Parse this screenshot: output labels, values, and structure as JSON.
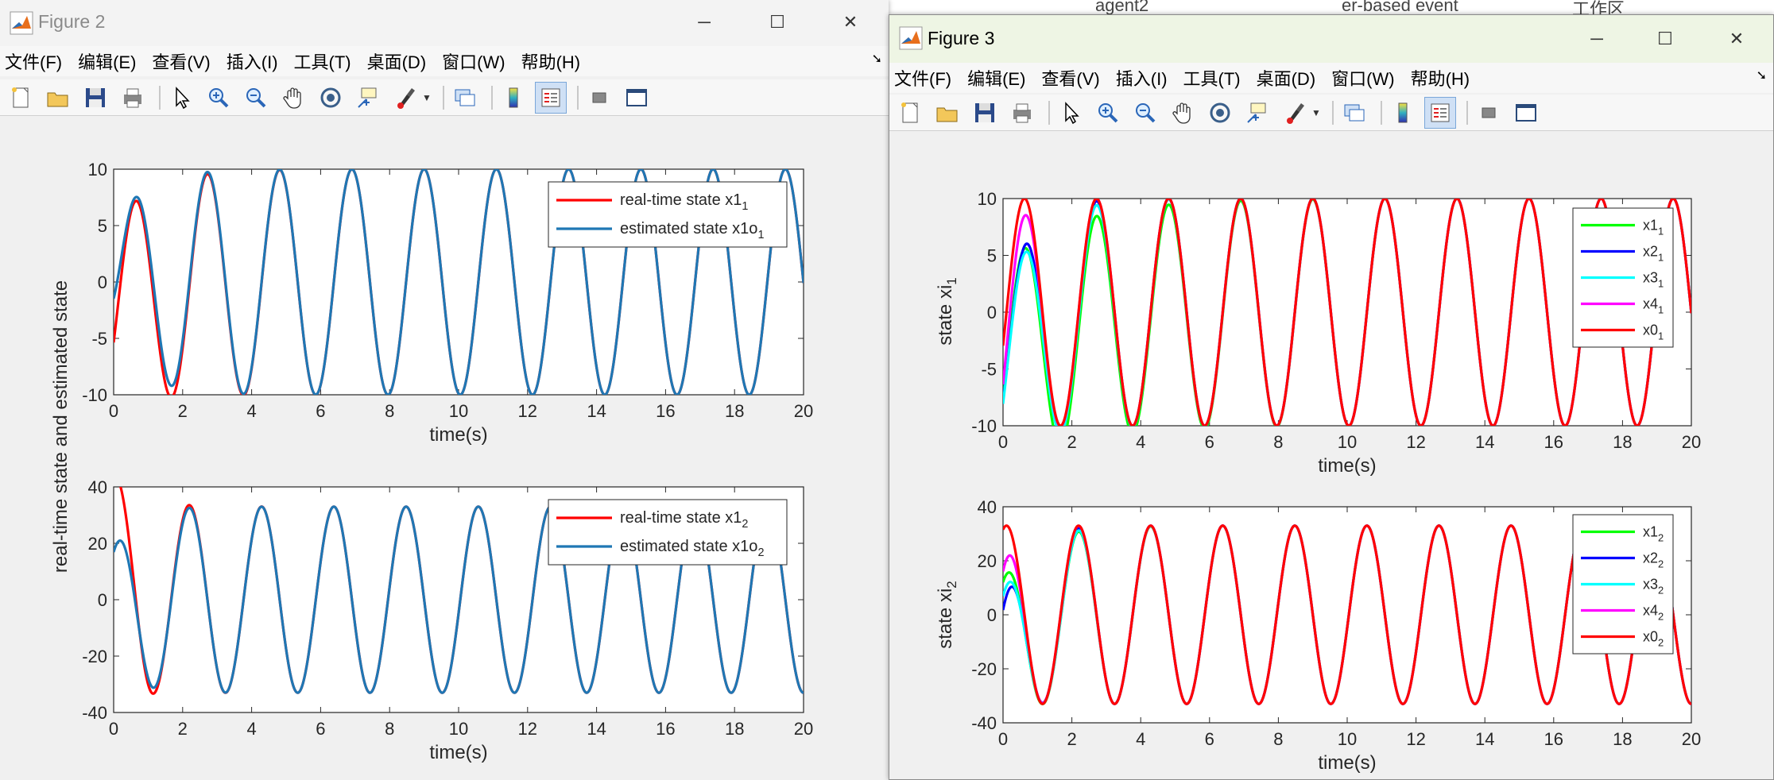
{
  "background": {
    "items": [
      "agent2",
      "er-based event",
      "工作区"
    ]
  },
  "windows": [
    {
      "id": "win2",
      "title": "Figure 2",
      "menus": [
        "文件(F)",
        "编辑(E)",
        "查看(V)",
        "插入(I)",
        "工具(T)",
        "桌面(D)",
        "窗口(W)",
        "帮助(H)"
      ],
      "toolbar_icons": [
        "new-figure-icon",
        "open-icon",
        "save-icon",
        "print-icon",
        "pointer-icon",
        "zoom-in-icon",
        "zoom-out-icon",
        "pan-icon",
        "rotate-icon",
        "data-cursor-icon",
        "brush-icon",
        "link-plot-icon",
        "colorbar-icon",
        "legend-icon",
        "hide-tools-icon",
        "dock-layout-icon"
      ]
    },
    {
      "id": "win3",
      "title": "Figure 3",
      "menus": [
        "文件(F)",
        "编辑(E)",
        "查看(V)",
        "插入(I)",
        "工具(T)",
        "桌面(D)",
        "窗口(W)",
        "帮助(H)"
      ],
      "toolbar_icons": [
        "new-figure-icon",
        "open-icon",
        "save-icon",
        "print-icon",
        "pointer-icon",
        "zoom-in-icon",
        "zoom-out-icon",
        "pan-icon",
        "rotate-icon",
        "data-cursor-icon",
        "brush-icon",
        "link-plot-icon",
        "colorbar-icon",
        "legend-icon",
        "hide-tools-icon",
        "dock-layout-icon"
      ]
    }
  ],
  "chart_data": [
    {
      "type": "line",
      "window": "Figure 2",
      "xlabel": "time(s)",
      "ylabel": "real-time state and estimated state",
      "xlim": [
        0,
        20
      ],
      "ylim": [
        -10,
        10
      ],
      "xticks": [
        0,
        2,
        4,
        6,
        8,
        10,
        12,
        14,
        16,
        18,
        20
      ],
      "yticks": [
        -10,
        -5,
        0,
        5,
        10
      ],
      "legend_position": "top-right",
      "series": [
        {
          "name": "real-time state x1",
          "sub": "1",
          "color": "#ff0000",
          "model": {
            "amp": 10,
            "w": 3.0,
            "phase": -0.3,
            "transient": [
              -3,
              0.8,
              0.9
            ]
          }
        },
        {
          "name": "estimated state x1o",
          "sub": "1",
          "color": "#1f77b4",
          "model": {
            "amp": 10,
            "w": 3.0,
            "phase": -0.3,
            "transient": [
              0,
              0.5,
              1.1
            ]
          }
        }
      ]
    },
    {
      "type": "line",
      "window": "Figure 2",
      "xlabel": "time(s)",
      "ylabel": "real-time state and estimated state",
      "xlim": [
        0,
        20
      ],
      "ylim": [
        -40,
        40
      ],
      "xticks": [
        0,
        2,
        4,
        6,
        8,
        10,
        12,
        14,
        16,
        18,
        20
      ],
      "yticks": [
        -40,
        -20,
        0,
        20,
        40
      ],
      "legend_position": "top-right",
      "series": [
        {
          "name": "real-time state x1",
          "sub": "2",
          "color": "#ff0000",
          "model": {
            "amp": 33,
            "w": 3.0,
            "phase": 1.27,
            "transient": [
              5,
              1.2,
              1.4
            ]
          }
        },
        {
          "name": "estimated state x1o",
          "sub": "2",
          "color": "#1f77b4",
          "model": {
            "amp": 33,
            "w": 3.0,
            "phase": 1.27,
            "transient": [
              -2,
              0.6,
              1.6
            ]
          }
        }
      ]
    },
    {
      "type": "line",
      "window": "Figure 3",
      "xlabel": "time(s)",
      "ylabel": "state xi",
      "ylabel_sub": "1",
      "xlim": [
        0,
        20
      ],
      "ylim": [
        -10,
        10
      ],
      "xticks": [
        0,
        2,
        4,
        6,
        8,
        10,
        12,
        14,
        16,
        18,
        20
      ],
      "yticks": [
        -10,
        -5,
        0,
        5,
        10
      ],
      "legend_position": "top-right",
      "series": [
        {
          "name": "x1",
          "sub": "1",
          "color": "#00ff00",
          "model": {
            "amp": 10,
            "w": 3.0,
            "phase": -0.3,
            "transient": [
              -5,
              0.9,
              0.5
            ]
          }
        },
        {
          "name": "x2",
          "sub": "1",
          "color": "#0000ff",
          "model": {
            "amp": 10,
            "w": 3.0,
            "phase": -0.3,
            "transient": [
              -6,
              0.6,
              1.4
            ]
          }
        },
        {
          "name": "x3",
          "sub": "1",
          "color": "#00ffff",
          "model": {
            "amp": 10,
            "w": 3.0,
            "phase": -0.3,
            "transient": [
              -6,
              0.7,
              1.0
            ]
          }
        },
        {
          "name": "x4",
          "sub": "1",
          "color": "#ff00ff",
          "model": {
            "amp": 10,
            "w": 3.0,
            "phase": -0.3,
            "transient": [
              -4,
              0.8,
              2.2
            ]
          }
        },
        {
          "name": "x0",
          "sub": "1",
          "color": "#ff0000",
          "model": {
            "amp": 10,
            "w": 3.0,
            "phase": -0.3,
            "transient": [
              0,
              1,
              0
            ]
          }
        }
      ]
    },
    {
      "type": "line",
      "window": "Figure 3",
      "xlabel": "time(s)",
      "ylabel": "state xi",
      "ylabel_sub": "2",
      "xlim": [
        0,
        20
      ],
      "ylim": [
        -40,
        40
      ],
      "xticks": [
        0,
        2,
        4,
        6,
        8,
        10,
        12,
        14,
        16,
        18,
        20
      ],
      "yticks": [
        -40,
        -20,
        0,
        20,
        40
      ],
      "legend_position": "top-right",
      "series": [
        {
          "name": "x1",
          "sub": "2",
          "color": "#00ff00",
          "model": {
            "amp": 33,
            "w": 3.0,
            "phase": 1.27,
            "transient": [
              -10,
              0.7,
              1.0
            ]
          }
        },
        {
          "name": "x2",
          "sub": "2",
          "color": "#0000ff",
          "model": {
            "amp": 33,
            "w": 3.0,
            "phase": 1.27,
            "transient": [
              -14,
              0.5,
              1.6
            ]
          }
        },
        {
          "name": "x3",
          "sub": "2",
          "color": "#00ffff",
          "model": {
            "amp": 33,
            "w": 3.0,
            "phase": 1.27,
            "transient": [
              -12,
              0.6,
              1.2
            ]
          }
        },
        {
          "name": "x4",
          "sub": "2",
          "color": "#ff00ff",
          "model": {
            "amp": 33,
            "w": 3.0,
            "phase": 1.27,
            "transient": [
              -6,
              0.7,
              2.4
            ]
          }
        },
        {
          "name": "x0",
          "sub": "2",
          "color": "#ff0000",
          "model": {
            "amp": 33,
            "w": 3.0,
            "phase": 1.27,
            "transient": [
              0,
              1,
              0
            ]
          }
        }
      ]
    }
  ]
}
